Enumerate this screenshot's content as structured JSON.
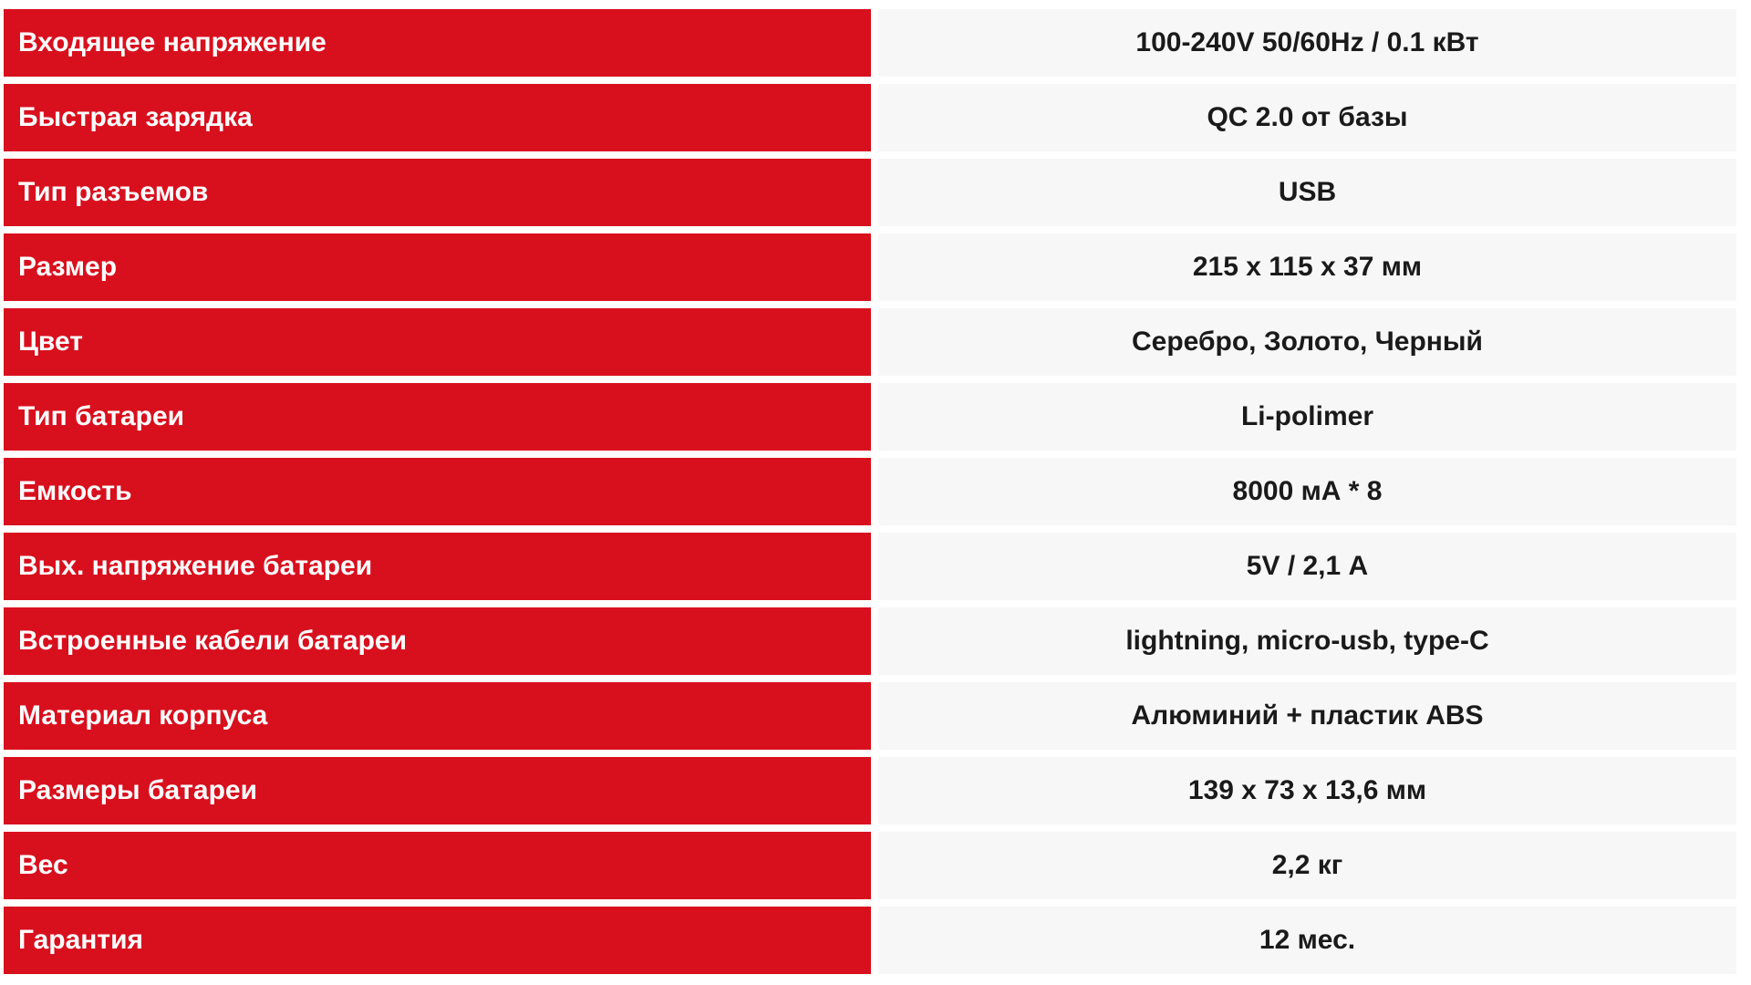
{
  "table": {
    "rows": [
      {
        "label": "Входящее напряжение",
        "value": "100-240V 50/60Hz / 0.1 кВт"
      },
      {
        "label": "Быстрая зарядка",
        "value": "QC 2.0 от базы"
      },
      {
        "label": "Тип разъемов",
        "value": "USB"
      },
      {
        "label": "Размер",
        "value": "215 x 115 x 37 мм"
      },
      {
        "label": "Цвет",
        "value": "Серебро, Золото, Черный"
      },
      {
        "label": "Тип батареи",
        "value": "Li-polimer"
      },
      {
        "label": "Емкость",
        "value": "8000 мА * 8"
      },
      {
        "label": "Вых. напряжение батареи",
        "value": "5V / 2,1 А"
      },
      {
        "label": "Встроенные кабели батареи",
        "value": "lightning, micro-usb, type-C"
      },
      {
        "label": "Материал корпуса",
        "value": "Алюминий + пластик ABS"
      },
      {
        "label": "Размеры батареи",
        "value": "139 x 73 x 13,6 мм"
      },
      {
        "label": "Вес",
        "value": "2,2 кг"
      },
      {
        "label": "Гарантия",
        "value": "12 мес."
      }
    ]
  },
  "colors": {
    "label_bg": "#d8101e",
    "label_text": "#ffffff",
    "value_bg": "#f7f7f7",
    "value_text": "#1a1a1a",
    "page_bg": "#ffffff"
  }
}
